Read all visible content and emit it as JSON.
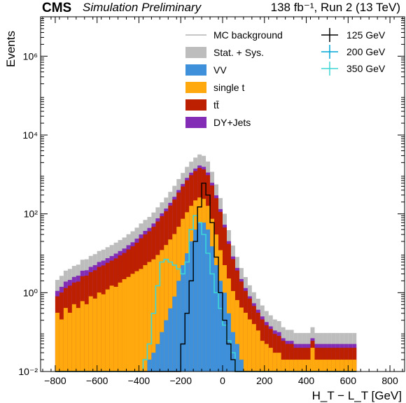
{
  "header": {
    "experiment": "CMS",
    "status": "Simulation Preliminary",
    "lumi": "138 fb⁻¹, Run 2 (13 TeV)"
  },
  "chart_data": {
    "type": "histogram-stacked",
    "xlabel": "H_T − L_T [GeV]",
    "ylabel": "Events",
    "xlim": [
      -870,
      870
    ],
    "ylim": [
      0.01,
      10000000
    ],
    "yscale": "log",
    "xticks": [
      "−800",
      "−600",
      "−400",
      "−200",
      "0",
      "200",
      "400",
      "600",
      "800"
    ],
    "yticks": [
      "10⁻²",
      "10⁰",
      "10²",
      "10⁴",
      "10⁶"
    ],
    "bin_width": 20,
    "legend": [
      {
        "label": "MC background",
        "style": "line",
        "color": "#8c8c8c"
      },
      {
        "label": "Stat. + Sys.",
        "style": "fill",
        "color": "#bdbdbd"
      },
      {
        "label": "VV",
        "style": "fill",
        "color": "#3f90da"
      },
      {
        "label": "single t",
        "style": "fill",
        "color": "#ffa90e"
      },
      {
        "label": "tt̄",
        "style": "fill",
        "color": "#bd1f01"
      },
      {
        "label": "DY+Jets",
        "style": "fill",
        "color": "#832db6"
      },
      {
        "label": "125 GeV",
        "style": "errorbar",
        "color": "#000000"
      },
      {
        "label": "200 GeV",
        "style": "errorbar",
        "color": "#00a6d6"
      },
      {
        "label": "350 GeV",
        "style": "errorbar",
        "color": "#3ed6d6"
      }
    ],
    "bins_center": [
      -790,
      -770,
      -750,
      -730,
      -710,
      -690,
      -670,
      -650,
      -630,
      -610,
      -590,
      -570,
      -550,
      -530,
      -510,
      -490,
      -470,
      -450,
      -430,
      -410,
      -390,
      -370,
      -350,
      -330,
      -310,
      -290,
      -270,
      -250,
      -230,
      -210,
      -190,
      -170,
      -150,
      -130,
      -110,
      -90,
      -70,
      -50,
      -30,
      -10,
      10,
      30,
      50,
      70,
      90,
      110,
      130,
      150,
      170,
      190,
      210,
      230,
      250,
      270,
      290,
      310,
      330,
      350,
      370,
      390,
      410,
      430,
      450,
      470,
      490,
      510,
      530,
      550,
      570,
      590,
      610,
      630
    ],
    "series": [
      {
        "name": "VV",
        "values": [
          0.01,
          0.01,
          0.01,
          0.01,
          0.01,
          0.01,
          0.01,
          0.01,
          0.01,
          0.01,
          0.01,
          0.01,
          0.01,
          0.01,
          0.01,
          0.01,
          0.01,
          0.01,
          0.01,
          0.01,
          0.01,
          0.01,
          0.02,
          0.03,
          0.05,
          0.1,
          0.2,
          0.4,
          0.8,
          2,
          5,
          10,
          20,
          40,
          60,
          60,
          40,
          15,
          5,
          2,
          1,
          0.3,
          0.1,
          0.05,
          0.02,
          0.01,
          0.01,
          0.01,
          0.01,
          0.01,
          0.01,
          0.01,
          0.01,
          0.01,
          0.01,
          0.01,
          0.01,
          0.01,
          0.01,
          0.01,
          0.01,
          0.01,
          0.01,
          0.01,
          0.01,
          0.01,
          0.01,
          0.01,
          0.01,
          0.01,
          0.01,
          0.01
        ]
      },
      {
        "name": "single t",
        "values": [
          0.3,
          0.2,
          0.4,
          0.3,
          0.5,
          0.4,
          0.6,
          0.5,
          0.8,
          0.7,
          1.0,
          0.9,
          1.2,
          1.5,
          1.4,
          1.8,
          2.2,
          2.5,
          3,
          3.5,
          4,
          5,
          6,
          7,
          9,
          12,
          16,
          22,
          30,
          45,
          70,
          100,
          140,
          180,
          200,
          180,
          120,
          60,
          25,
          10,
          4,
          2,
          1,
          0.6,
          0.4,
          0.3,
          0.2,
          0.15,
          0.1,
          0.05,
          0.04,
          0.03,
          0.02,
          0.02,
          0.01,
          0.01,
          0.01,
          0.01,
          0.01,
          0.01,
          0.01,
          0.03,
          0.01,
          0.01,
          0.01,
          0.01,
          0.01,
          0.01,
          0.01,
          0.01,
          0.01,
          0.01
        ]
      },
      {
        "name": "tt̄",
        "values": [
          0.5,
          0.8,
          0.9,
          1.2,
          1.3,
          1.5,
          2,
          2.2,
          2.5,
          3,
          3.5,
          4,
          4.5,
          5,
          6,
          7,
          8,
          10,
          12,
          15,
          20,
          25,
          30,
          40,
          55,
          75,
          100,
          140,
          200,
          300,
          420,
          600,
          800,
          1000,
          1200,
          1100,
          800,
          450,
          220,
          100,
          40,
          15,
          6,
          3,
          1.5,
          0.8,
          0.5,
          0.3,
          0.2,
          0.15,
          0.1,
          0.08,
          0.06,
          0.05,
          0.04,
          0.03,
          0.03,
          0.02,
          0.02,
          0.02,
          0.02,
          0.02,
          0.02,
          0.02,
          0.02,
          0.02,
          0.02,
          0.02,
          0.02,
          0.02,
          0.02,
          0.02
        ]
      },
      {
        "name": "DY+Jets",
        "values": [
          0.3,
          0.4,
          0.6,
          0.6,
          0.7,
          0.8,
          1,
          1,
          1.2,
          1.3,
          1.5,
          1.6,
          1.8,
          2,
          2.4,
          2.6,
          3,
          3.5,
          4,
          5,
          6,
          7,
          8,
          10,
          13,
          16,
          20,
          28,
          40,
          55,
          80,
          110,
          150,
          190,
          230,
          220,
          160,
          90,
          45,
          20,
          8,
          3,
          1.2,
          0.6,
          0.3,
          0.2,
          0.1,
          0.08,
          0.06,
          0.04,
          0.03,
          0.02,
          0.02,
          0.02,
          0.01,
          0.01,
          0.01,
          0.01,
          0.01,
          0.01,
          0.01,
          0.01,
          0.01,
          0.01,
          0.01,
          0.01,
          0.01,
          0.01,
          0.01,
          0.01,
          0.01,
          0.01
        ]
      },
      {
        "name": "125 GeV",
        "values": [
          0.01,
          0.01,
          0.01,
          0.01,
          0.01,
          0.01,
          0.01,
          0.01,
          0.01,
          0.01,
          0.01,
          0.01,
          0.01,
          0.01,
          0.01,
          0.01,
          0.01,
          0.01,
          0.01,
          0.01,
          0.01,
          0.01,
          0.01,
          0.01,
          0.01,
          0.01,
          0.01,
          0.01,
          0.01,
          0.01,
          0.05,
          0.3,
          2,
          20,
          150,
          600,
          300,
          60,
          8,
          1,
          0.2,
          0.05,
          0.02,
          0.01,
          0.01,
          0.01,
          0.01,
          0.01,
          0.01,
          0.01,
          0.01,
          0.01,
          0.01,
          0.01,
          0.01,
          0.01,
          0.01,
          0.01,
          0.01,
          0.01,
          0.01,
          0.01,
          0.01,
          0.01,
          0.01,
          0.01,
          0.01,
          0.01,
          0.01,
          0.01,
          0.01,
          0.01
        ]
      },
      {
        "name": "350 GeV",
        "values": [
          0.01,
          0.01,
          0.01,
          0.01,
          0.01,
          0.01,
          0.01,
          0.01,
          0.01,
          0.01,
          0.01,
          0.01,
          0.01,
          0.01,
          0.01,
          0.01,
          0.01,
          0.01,
          0.01,
          0.01,
          0.01,
          0.02,
          0.05,
          0.3,
          1.5,
          6,
          7,
          6,
          5,
          4,
          3,
          6,
          40,
          90,
          60,
          30,
          10,
          3,
          1,
          0.4,
          0.15,
          0.06,
          0.03,
          0.01,
          0.01,
          0.01,
          0.01,
          0.01,
          0.01,
          0.01,
          0.01,
          0.01,
          0.01,
          0.01,
          0.01,
          0.01,
          0.01,
          0.01,
          0.01,
          0.01,
          0.01,
          0.01,
          0.01,
          0.01,
          0.01,
          0.01,
          0.01,
          0.01,
          0.01,
          0.01,
          0.01,
          0.01
        ]
      }
    ]
  }
}
